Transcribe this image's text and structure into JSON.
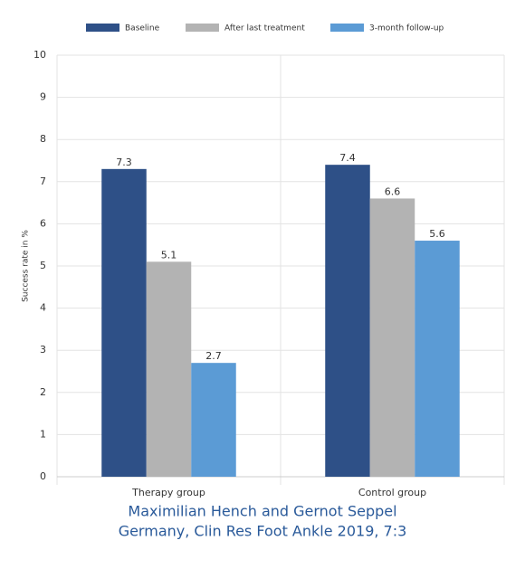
{
  "chart_data": {
    "type": "bar",
    "y_label": "Success rate in %",
    "categories": [
      "Therapy group",
      "Control group"
    ],
    "series": [
      {
        "name": "Baseline",
        "color": "#2e5087",
        "values": [
          7.3,
          7.4
        ]
      },
      {
        "name": "After last treatment",
        "color": "#b3b3b3",
        "values": [
          5.1,
          6.6
        ]
      },
      {
        "name": "3-month follow-up",
        "color": "#5b9bd5",
        "values": [
          2.7,
          5.6
        ]
      }
    ],
    "ylim": [
      0,
      10
    ],
    "yticks": [
      0,
      1,
      2,
      3,
      4,
      5,
      6,
      7,
      8,
      9,
      10
    ],
    "grid": true,
    "legend": "top",
    "caption": [
      "Maximilian Hench and Gernot Seppel",
      "Germany, Clin Res Foot Ankle 2019, 7:3"
    ]
  }
}
